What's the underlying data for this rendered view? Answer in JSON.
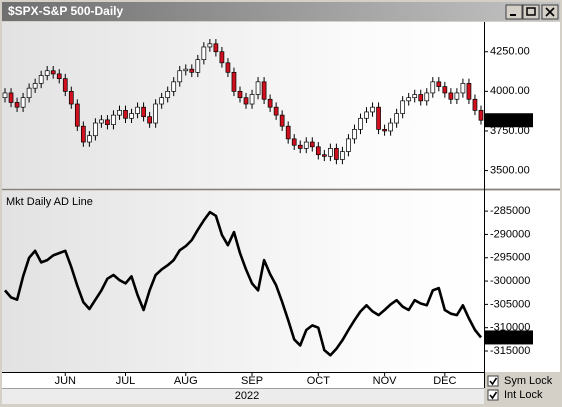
{
  "window_title": "$SPX-S&P 500-Daily",
  "chart_data": [
    {
      "type": "candlestick",
      "up_color": "#ffffff",
      "down_color": "#d0101e",
      "open": [
        3960,
        3990,
        3930,
        3900,
        3960,
        4020,
        4050,
        4100,
        4130,
        4110,
        4080,
        4000,
        3920,
        3780,
        3680,
        3720,
        3800,
        3820,
        3790,
        3850,
        3880,
        3830,
        3860,
        3900,
        3840,
        3800,
        3920,
        3960,
        4000,
        4060,
        4130,
        4140,
        4120,
        4200,
        4280,
        4300,
        4250,
        4180,
        4120,
        4000,
        3960,
        3920,
        3980,
        4060,
        3950,
        3900,
        3850,
        3780,
        3700,
        3660,
        3640,
        3680,
        3650,
        3600,
        3590,
        3640,
        3570,
        3620,
        3700,
        3760,
        3830,
        3870,
        3900,
        3760,
        3750,
        3800,
        3860,
        3940,
        3960,
        3980,
        3940,
        3990,
        4060,
        4030,
        3990,
        3950,
        3990,
        4050,
        3950,
        3880
      ],
      "high": [
        4020,
        4020,
        3960,
        3990,
        4050,
        4080,
        4130,
        4160,
        4160,
        4140,
        4110,
        4030,
        3950,
        3810,
        3750,
        3830,
        3850,
        3850,
        3880,
        3910,
        3910,
        3890,
        3930,
        3930,
        3870,
        3950,
        3990,
        4030,
        4090,
        4160,
        4170,
        4170,
        4230,
        4310,
        4330,
        4330,
        4280,
        4210,
        4150,
        4030,
        3990,
        4010,
        4090,
        4090,
        3980,
        3930,
        3880,
        3810,
        3730,
        3690,
        3710,
        3710,
        3680,
        3630,
        3670,
        3670,
        3650,
        3730,
        3790,
        3860,
        3900,
        3930,
        3930,
        3790,
        3830,
        3890,
        3970,
        3990,
        4010,
        4010,
        4020,
        4090,
        4090,
        4060,
        4020,
        4020,
        4080,
        4080,
        3980,
        3910
      ],
      "low": [
        3930,
        3900,
        3870,
        3870,
        3930,
        3990,
        4020,
        4070,
        4080,
        4050,
        3970,
        3890,
        3750,
        3650,
        3650,
        3690,
        3770,
        3760,
        3760,
        3820,
        3800,
        3800,
        3830,
        3810,
        3770,
        3770,
        3890,
        3930,
        3970,
        4030,
        4100,
        4090,
        4090,
        4170,
        4250,
        4220,
        4150,
        4090,
        3970,
        3930,
        3890,
        3890,
        3950,
        3920,
        3870,
        3820,
        3750,
        3670,
        3630,
        3610,
        3610,
        3620,
        3570,
        3560,
        3560,
        3540,
        3540,
        3590,
        3670,
        3730,
        3800,
        3840,
        3730,
        3720,
        3720,
        3770,
        3830,
        3910,
        3930,
        3910,
        3910,
        3960,
        4000,
        3960,
        3920,
        3920,
        3960,
        3920,
        3850,
        3790
      ],
      "close": [
        3990,
        3930,
        3900,
        3960,
        4020,
        4050,
        4100,
        4130,
        4110,
        4080,
        4000,
        3920,
        3780,
        3680,
        3720,
        3800,
        3820,
        3790,
        3850,
        3880,
        3830,
        3860,
        3900,
        3840,
        3800,
        3920,
        3960,
        4000,
        4060,
        4130,
        4140,
        4120,
        4200,
        4280,
        4300,
        4250,
        4180,
        4120,
        4000,
        3960,
        3920,
        3980,
        4060,
        3950,
        3900,
        3850,
        3780,
        3700,
        3660,
        3640,
        3680,
        3650,
        3600,
        3590,
        3640,
        3570,
        3620,
        3700,
        3760,
        3830,
        3870,
        3900,
        3760,
        3750,
        3800,
        3860,
        3940,
        3960,
        3980,
        3940,
        3990,
        4060,
        4030,
        3990,
        3950,
        3990,
        4050,
        3950,
        3880,
        3817.66
      ],
      "ylim": [
        3390,
        4425
      ],
      "yticks": [
        {
          "value": 3500,
          "label": "3500.00"
        },
        {
          "value": 3750,
          "label": "3750.00"
        },
        {
          "value": 4000,
          "label": "4000.00"
        },
        {
          "value": 4250,
          "label": "4250.00"
        }
      ],
      "xticks": [
        {
          "value": 10,
          "label": "JUN"
        },
        {
          "value": 20,
          "label": "JUL"
        },
        {
          "value": 30,
          "label": "AUG"
        },
        {
          "value": 41,
          "label": "SEP"
        },
        {
          "value": 52,
          "label": "OCT"
        },
        {
          "value": 63,
          "label": "NOV"
        },
        {
          "value": 73,
          "label": "DEC"
        }
      ],
      "x_year": "2022"
    },
    {
      "type": "line",
      "title": "Mkt Daily AD Line",
      "color": "#000000",
      "values": [
        -302000,
        -303500,
        -304000,
        -299000,
        -295000,
        -293500,
        -296000,
        -295500,
        -294500,
        -294000,
        -293500,
        -297000,
        -301000,
        -304500,
        -306000,
        -304000,
        -302000,
        -299500,
        -298700,
        -299800,
        -300500,
        -299000,
        -303000,
        -306200,
        -302000,
        -298700,
        -297500,
        -296600,
        -295500,
        -293400,
        -292500,
        -291200,
        -289000,
        -287000,
        -285200,
        -286000,
        -290100,
        -292300,
        -289500,
        -294000,
        -297500,
        -300500,
        -302000,
        -295500,
        -298500,
        -300900,
        -304500,
        -308400,
        -312500,
        -313800,
        -310500,
        -309500,
        -310000,
        -314800,
        -315900,
        -314500,
        -312700,
        -310500,
        -308400,
        -306500,
        -305200,
        -306500,
        -307300,
        -306200,
        -305000,
        -304100,
        -305500,
        -306200,
        -304100,
        -304800,
        -305200,
        -302000,
        -301500,
        -306200,
        -307000,
        -307300,
        -305200,
        -308000,
        -310500,
        -312088
      ],
      "ylim": [
        -319500,
        -280900
      ],
      "yticks": [
        -285000,
        -290000,
        -295000,
        -300000,
        -305000,
        -310000,
        -315000
      ]
    }
  ],
  "controls": [
    {
      "label": "Sym Lock",
      "checked": true
    },
    {
      "label": "Int Lock",
      "checked": true
    }
  ]
}
